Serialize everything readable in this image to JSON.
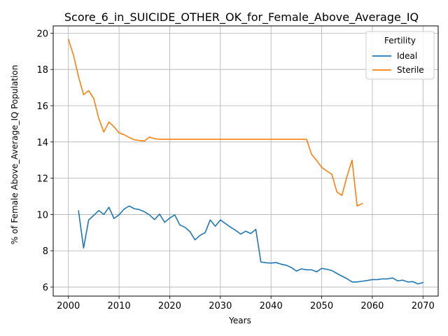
{
  "chart_data": {
    "type": "line",
    "title": "Score_6_in_SUICIDE_OTHER_OK_for_Female_Above_Average_IQ",
    "xlabel": "Years",
    "ylabel": "% of Female Above_Average_IQ Population",
    "xlim": [
      1997,
      2073
    ],
    "ylim": [
      5.5,
      20.4
    ],
    "xticks": [
      2000,
      2010,
      2020,
      2030,
      2040,
      2050,
      2060,
      2070
    ],
    "yticks": [
      6,
      8,
      10,
      12,
      14,
      16,
      18,
      20
    ],
    "grid": true,
    "legend": {
      "title": "Fertility",
      "placement": "top-right"
    },
    "series": [
      {
        "name": "Ideal",
        "color": "#1f77b4",
        "x": [
          2002,
          2003,
          2004,
          2005,
          2006,
          2007,
          2008,
          2009,
          2010,
          2011,
          2012,
          2013,
          2014,
          2015,
          2016,
          2017,
          2018,
          2019,
          2020,
          2021,
          2022,
          2023,
          2024,
          2025,
          2026,
          2027,
          2028,
          2029,
          2030,
          2031,
          2032,
          2033,
          2034,
          2035,
          2036,
          2037,
          2038,
          2039,
          2040,
          2041,
          2042,
          2043,
          2044,
          2045,
          2046,
          2047,
          2048,
          2049,
          2050,
          2051,
          2052,
          2053,
          2054,
          2055,
          2056,
          2057,
          2058,
          2059,
          2060,
          2061,
          2062,
          2063,
          2064,
          2065,
          2066,
          2067,
          2068,
          2069,
          2070
        ],
        "values": [
          10.2,
          8.15,
          9.7,
          9.95,
          10.22,
          10.0,
          10.4,
          9.78,
          9.98,
          10.3,
          10.47,
          10.32,
          10.27,
          10.15,
          9.98,
          9.72,
          10.02,
          9.57,
          9.8,
          9.98,
          9.42,
          9.3,
          9.05,
          8.6,
          8.85,
          9.0,
          9.7,
          9.35,
          9.7,
          9.5,
          9.3,
          9.13,
          8.92,
          9.08,
          8.95,
          9.18,
          7.38,
          7.34,
          7.32,
          7.35,
          7.26,
          7.2,
          7.08,
          6.88,
          7.0,
          6.95,
          6.95,
          6.84,
          7.03,
          6.98,
          6.91,
          6.75,
          6.6,
          6.46,
          6.28,
          6.28,
          6.32,
          6.36,
          6.41,
          6.41,
          6.45,
          6.45,
          6.5,
          6.34,
          6.38,
          6.28,
          6.3,
          6.17,
          6.25
        ]
      },
      {
        "name": "Sterile",
        "color": "#ff7f0e",
        "x": [
          2000,
          2001,
          2002,
          2003,
          2004,
          2005,
          2006,
          2007,
          2008,
          2009,
          2010,
          2011,
          2012,
          2013,
          2014,
          2015,
          2016,
          2017,
          2018,
          2019,
          2020,
          2021,
          2022,
          2023,
          2024,
          2025,
          2026,
          2027,
          2028,
          2029,
          2030,
          2031,
          2032,
          2033,
          2034,
          2035,
          2036,
          2037,
          2038,
          2039,
          2040,
          2041,
          2042,
          2043,
          2044,
          2045,
          2046,
          2047,
          2048,
          2049,
          2050,
          2051,
          2052,
          2053,
          2054,
          2055,
          2056,
          2057,
          2058
        ],
        "values": [
          19.65,
          18.8,
          17.6,
          16.6,
          16.83,
          16.4,
          15.3,
          14.55,
          15.1,
          14.84,
          14.5,
          14.4,
          14.25,
          14.12,
          14.08,
          14.05,
          14.27,
          14.18,
          14.15,
          14.15,
          14.15,
          14.15,
          14.15,
          14.15,
          14.15,
          14.15,
          14.15,
          14.15,
          14.15,
          14.15,
          14.15,
          14.15,
          14.15,
          14.15,
          14.15,
          14.15,
          14.15,
          14.15,
          14.15,
          14.15,
          14.15,
          14.15,
          14.15,
          14.15,
          14.15,
          14.15,
          14.15,
          14.15,
          13.32,
          12.98,
          12.6,
          12.4,
          12.22,
          11.25,
          11.05,
          12.1,
          13.0,
          10.47,
          10.6
        ]
      }
    ]
  }
}
